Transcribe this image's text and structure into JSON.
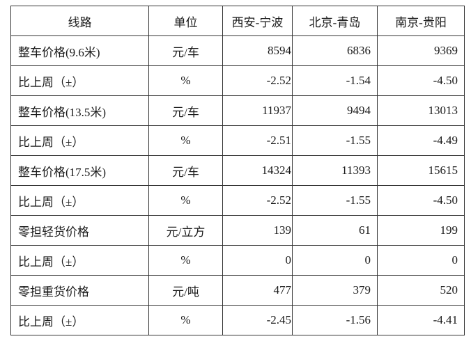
{
  "table": {
    "headers": [
      "线路",
      "单位",
      "西安-宁波",
      "北京-青岛",
      "南京-贵阳"
    ],
    "rows": [
      [
        "整车价格(9.6米)",
        "元/车",
        "8594",
        "6836",
        "9369"
      ],
      [
        "比上周（±）",
        "%",
        "-2.52",
        "-1.54",
        "-4.50"
      ],
      [
        "整车价格(13.5米)",
        "元/车",
        "11937",
        "9494",
        "13013"
      ],
      [
        "比上周（±）",
        "%",
        "-2.51",
        "-1.55",
        "-4.49"
      ],
      [
        "整车价格(17.5米)",
        "元/车",
        "14324",
        "11393",
        "15615"
      ],
      [
        "比上周（±）",
        "%",
        "-2.52",
        "-1.55",
        "-4.50"
      ],
      [
        "零担轻货价格",
        "元/立方",
        "139",
        "61",
        "199"
      ],
      [
        "比上周（±）",
        "%",
        "0",
        "0",
        "0"
      ],
      [
        "零担重货价格",
        "元/吨",
        "477",
        "379",
        "520"
      ],
      [
        "比上周（±）",
        "%",
        "-2.45",
        "-1.56",
        "-4.41"
      ]
    ]
  }
}
